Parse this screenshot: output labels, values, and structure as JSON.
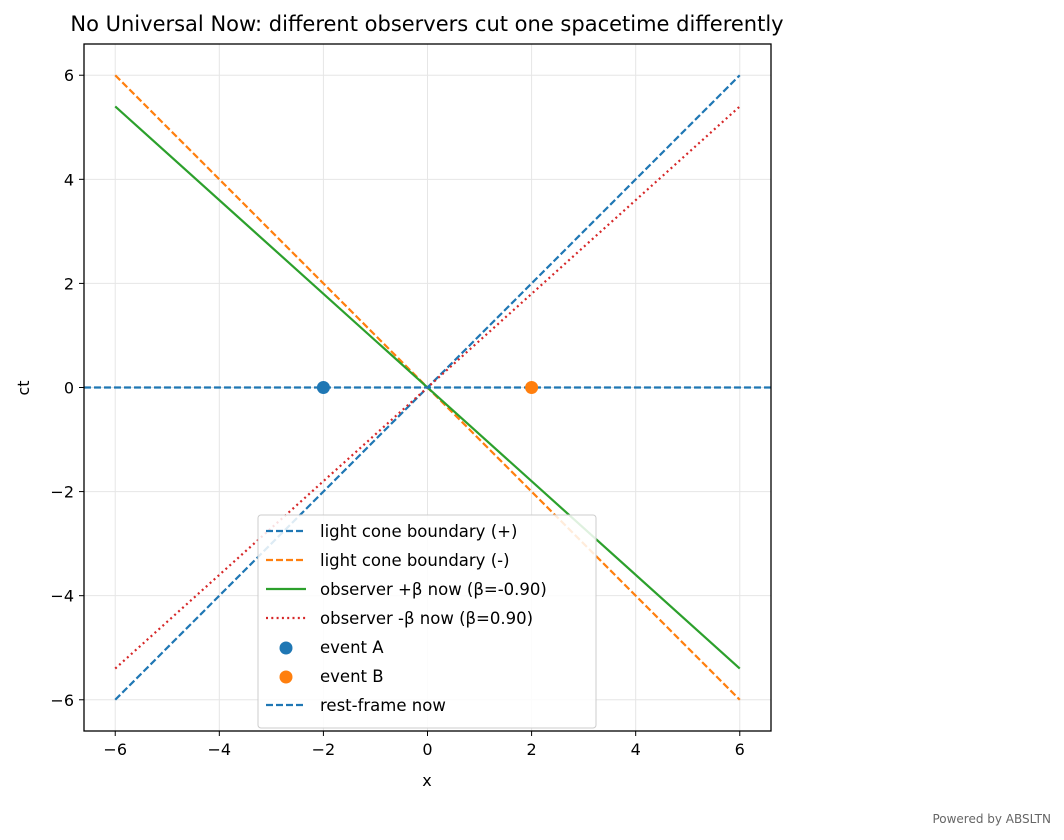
{
  "chart_data": {
    "type": "line",
    "title": "No Universal Now: different observers cut one spacetime differently",
    "xlabel": "x",
    "ylabel": "ct",
    "xlim": [
      -6.6,
      6.6
    ],
    "ylim": [
      -6.6,
      6.6
    ],
    "xticks": [
      -6,
      -4,
      -2,
      0,
      2,
      4,
      6
    ],
    "yticks": [
      -6,
      -4,
      -2,
      0,
      2,
      4,
      6
    ],
    "grid": true,
    "legend_position": "lower center",
    "lines": [
      {
        "name": "light cone boundary (+)",
        "color": "#1f77b4",
        "style": "dashed",
        "x": [
          -6,
          6
        ],
        "y": [
          -6,
          6
        ]
      },
      {
        "name": "light cone boundary (-)",
        "color": "#ff7f0e",
        "style": "dashed",
        "x": [
          -6,
          6
        ],
        "y": [
          6,
          -6
        ]
      },
      {
        "name": "observer +β now (β=-0.90)",
        "color": "#2ca02c",
        "style": "solid",
        "x": [
          -6,
          6
        ],
        "y": [
          5.4,
          -5.4
        ]
      },
      {
        "name": "observer -β now (β=0.90)",
        "color": "#d62728",
        "style": "dotted",
        "x": [
          -6,
          6
        ],
        "y": [
          -5.4,
          5.4
        ]
      }
    ],
    "points": [
      {
        "name": "event A",
        "color": "#1f77b4",
        "x": -2,
        "y": 0
      },
      {
        "name": "event B",
        "color": "#ff7f0e",
        "x": 2,
        "y": 0
      }
    ],
    "hlines": [
      {
        "name": "rest-frame now",
        "color": "#1f77b4",
        "style": "dashed",
        "y": 0
      }
    ]
  },
  "footer": {
    "text": "Powered by ABSLTN"
  }
}
